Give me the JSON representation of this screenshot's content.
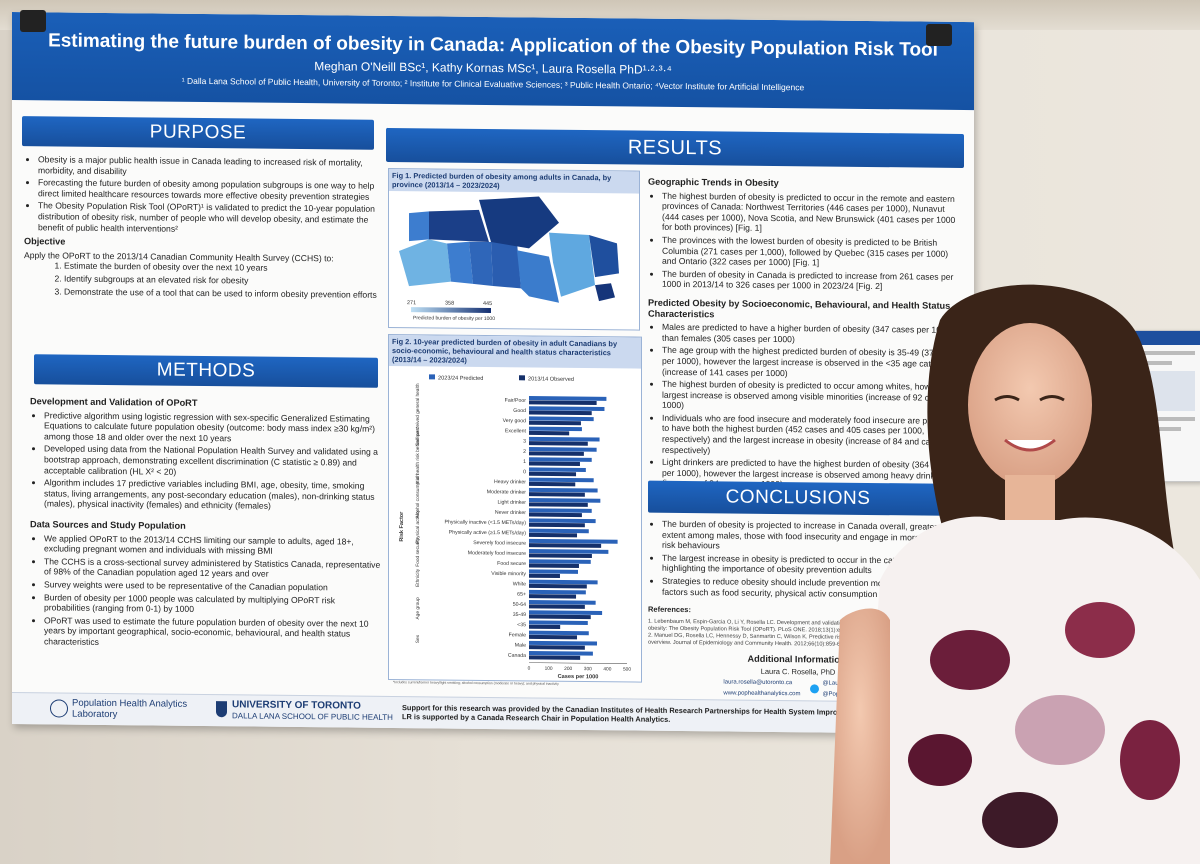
{
  "poster": {
    "title": "Estimating the future burden of obesity in Canada: Application of the Obesity Population Risk Tool",
    "authors": "Meghan O'Neill BSc¹, Kathy Kornas MSc¹, Laura Rosella PhD¹·²·³·⁴",
    "affiliations": "¹ Dalla Lana School of Public Health, University of Toronto; ² Institute for Clinical Evaluative Sciences; ³ Public Health Ontario; ⁴Vector Institute for Artificial Intelligence",
    "purpose": {
      "heading": "PURPOSE",
      "bullets": [
        "Obesity is a major public health issue in Canada leading to increased risk of mortality, morbidity, and disability",
        "Forecasting the future burden of obesity among population subgroups is one way to help direct limited healthcare resources towards more effective obesity prevention strategies",
        "The Obesity Population Risk Tool (OPoRT)¹ is validated to predict the 10-year population distribution of obesity risk, number of people who will develop obesity, and estimate the benefit of public health interventions²"
      ],
      "objective_heading": "Objective",
      "objective_intro": "Apply the OPoRT to the 2013/14 Canadian Community Health Survey (CCHS) to:",
      "objectives": [
        "Estimate the burden of obesity over the next 10 years",
        "Identify subgroups at an elevated risk for obesity",
        "Demonstrate the use of a tool that can be used to inform obesity prevention efforts"
      ]
    },
    "methods": {
      "heading": "METHODS",
      "dev_heading": "Development and Validation of OPoRT",
      "dev_bullets": [
        "Predictive algorithm using logistic regression with sex-specific Generalized Estimating Equations to calculate future population obesity (outcome: body mass index ≥30 kg/m²) among those 18 and older over the next 10 years",
        "Developed using data from the National Population Health Survey and validated using a bootstrap approach, demonstrating excellent discrimination (C statistic ≥ 0.89) and acceptable calibration (HL X² < 20)",
        "Algorithm includes 17 predictive variables including BMI, age, obesity, time, smoking status, living arrangements, any post-secondary education (males), non-drinking status (males), physical inactivity (females) and ethnicity (females)"
      ],
      "data_heading": "Data Sources and Study Population",
      "data_bullets": [
        "We applied OPoRT to the 2013/14 CCHS limiting our sample to adults, aged 18+, excluding pregnant women and individuals with missing BMI",
        "The CCHS is a cross-sectional survey administered by Statistics Canada, representative of 98% of the Canadian population aged 12 years and over",
        "Survey weights were used to be representative of the Canadian population",
        "Burden of obesity per 1000 people was calculated by multiplying OPoRT risk probabilities (ranging from 0-1) by 1000",
        "OPoRT was used to estimate the future population burden of obesity over the next 10 years by important geographical, socio-economic, behavioural, and health status characteristics"
      ]
    },
    "results": {
      "heading": "RESULTS",
      "fig1_caption": "Fig 1. Predicted burden of obesity among adults in Canada, by province (2013/14 – 2023/2024)",
      "fig1_legend_ticks": [
        "271",
        "358",
        "445"
      ],
      "fig1_legend_label": "Predicted burden of obesity per 1000",
      "fig2_caption": "Fig 2. 10-year predicted burden of obesity in adult Canadians by socio-economic, behavioural and health status characteristics (2013/14 – 2023/2024)",
      "geo_heading": "Geographic Trends in Obesity",
      "geo_bullets": [
        "The highest burden of obesity is predicted to occur in the remote and eastern provinces of Canada: Northwest Territories (446 cases per 1000), Nunavut (444 cases per 1000), Nova Scotia, and New Brunswick (401 cases per 1000 for both provinces) [Fig. 1]",
        "The provinces with the lowest burden of obesity is predicted to be British Columbia (271 cases per 1,000), followed by Quebec (315 cases per 1000) and Ontario (322 cases per 1000) [Fig. 1]",
        "The burden of obesity in Canada is predicted to increase from 261 cases per 1000 in 2013/14 to 326 cases per 1000 in 2023/24 [Fig. 2]"
      ],
      "pred_heading": "Predicted Obesity by Socioeconomic, Behavioural, and Health Status Characteristics",
      "pred_bullets": [
        "Males are predicted to have a higher burden of obesity (347 cases per 1000) than females (305 cases per 1000)",
        "The age group with the highest predicted burden of obesity is 35-49 (373 cases per 1000), however the largest increase is observed in the <35 age category (increase of 141 cases per 1000)",
        "The highest burden of obesity is predicted to occur among whites, however the largest increase is observed among visible minorities (increase of 92 cases per 1000)",
        "Individuals who are food insecure and moderately food insecure are predicted to have both the highest burden (452 cases and 405 cases per 1000, respectively) and the largest increase in obesity (increase of 84 and cases, respectively)",
        "Light drinkers are predicted to have the highest burden of obesity (364 cases per 1000), however the largest increase is observed among heavy drinkers (increase of 94 cases per 1000)"
      ]
    },
    "conclusions": {
      "heading": "CONCLUSIONS",
      "bullets": [
        "The burden of obesity is projected to increase in Canada overall, greater extent among males, those with food insecurity and engage in more health risk behaviours",
        "The largest increase in obesity is predicted to occur in the category, highlighting the importance of obesity prevention adults",
        "Strategies to reduce obesity should include prevention modifiable risk factors such as food security, physical activ consumption"
      ],
      "references_heading": "References:",
      "references": [
        "1. Lebenbaum M, Espin-Garcia O, Li Y, Rosella LC. Development and validation of a population based risk algorithm for obesity: The Obesity Population Risk Tool (OPoRT). PLoS ONE. 2018;13(1):e0191169.",
        "2. Manuel DG, Rosella LC, Hennessy D, Sanmartin C, Wilson K. Predictive risk algorithms in a population setting: an overview. Journal of Epidemiology and Community Health. 2012;66(10):859-65."
      ],
      "contact_heading": "Additional Information:",
      "contact_name": "Laura C. Rosella, PhD",
      "contact_email": "laura.rosella@utoronto.ca",
      "contact_web": "www.pophealthanalytics.com",
      "contact_twitter": "@LauraCRosella",
      "contact_twitter2": "@PopHthAnalytics"
    },
    "footer": {
      "lab_name": "Population Health Analytics Laboratory",
      "uoft_line1": "UNIVERSITY OF TORONTO",
      "uoft_line2": "DALLA LANA SCHOOL OF PUBLIC HEALTH",
      "support_line1": "Support for this research was provided by the Canadian Institutes of Health Research Partnerships for Health System Improvement (FRN 14",
      "support_line2": "LR is supported by a Canada Research Chair in Population Health Analytics."
    }
  },
  "chart_data": [
    {
      "type": "bar",
      "orientation": "horizontal",
      "title": "Fig 2. 10-year predicted burden of obesity in adult Canadians by socio-economic, behavioural and health status characteristics (2013/14 – 2023/2024)",
      "xlabel": "Cases per 1000",
      "ylabel": "Risk Factor",
      "xlim": [
        0,
        500
      ],
      "x_ticks": [
        "0",
        "50",
        "100",
        "150",
        "200",
        "250",
        "300",
        "350",
        "400",
        "450",
        "500"
      ],
      "legend_position": "top",
      "footnote": "*Includes current/former heavy/light smoking; alcohol consumption (moderate or heavy); and physical inactivity",
      "groups": [
        {
          "name": "Self-perceived general health",
          "categories": [
            "Fair/Poor",
            "Good",
            "Very good",
            "Excellent"
          ]
        },
        {
          "name": "# of health risk behaviours*",
          "categories": [
            "3",
            "2",
            "1",
            "0"
          ]
        },
        {
          "name": "Alcohol consumption",
          "categories": [
            "Heavy drinker",
            "Moderate drinker",
            "Light drinker",
            "Never drinker"
          ]
        },
        {
          "name": "Physical activity",
          "categories": [
            "Physically inactive (<1.5 METs/day)",
            "Physically active (≥1.5 METs/day)"
          ]
        },
        {
          "name": "Food security",
          "categories": [
            "Severely food insecure",
            "Moderately food insecure",
            "Food secure"
          ]
        },
        {
          "name": "Ethnicity",
          "categories": [
            "Visible minority",
            "White"
          ]
        },
        {
          "name": "Age group",
          "categories": [
            "65+",
            "50-64",
            "35-49",
            "<35"
          ]
        },
        {
          "name": "Sex",
          "categories": [
            "Female",
            "Male"
          ]
        },
        {
          "name": "",
          "categories": [
            "Canada"
          ]
        }
      ],
      "categories": [
        "Fair/Poor",
        "Good",
        "Very good",
        "Excellent",
        "3",
        "2",
        "1",
        "0",
        "Heavy drinker",
        "Moderate drinker",
        "Light drinker",
        "Never drinker",
        "Physically inactive (<1.5 METs/day)",
        "Physically active (≥1.5 METs/day)",
        "Severely food insecure",
        "Moderately food insecure",
        "Food secure",
        "Visible minority",
        "White",
        "65+",
        "50-64",
        "35-49",
        "<35",
        "Female",
        "Male",
        "Canada"
      ],
      "series": [
        {
          "name": "2023/24 Predicted",
          "color": "#2a62b8",
          "values": [
            395,
            385,
            330,
            270,
            360,
            345,
            320,
            290,
            330,
            350,
            364,
            320,
            340,
            305,
            452,
            405,
            315,
            250,
            350,
            290,
            340,
            373,
            300,
            305,
            347,
            326
          ]
        },
        {
          "name": "2013/14 Observed",
          "color": "#15306a",
          "values": [
            345,
            320,
            265,
            205,
            300,
            280,
            260,
            240,
            236,
            285,
            300,
            270,
            285,
            245,
            368,
            321,
            255,
            158,
            295,
            240,
            285,
            315,
            159,
            245,
            285,
            261
          ]
        }
      ]
    }
  ]
}
